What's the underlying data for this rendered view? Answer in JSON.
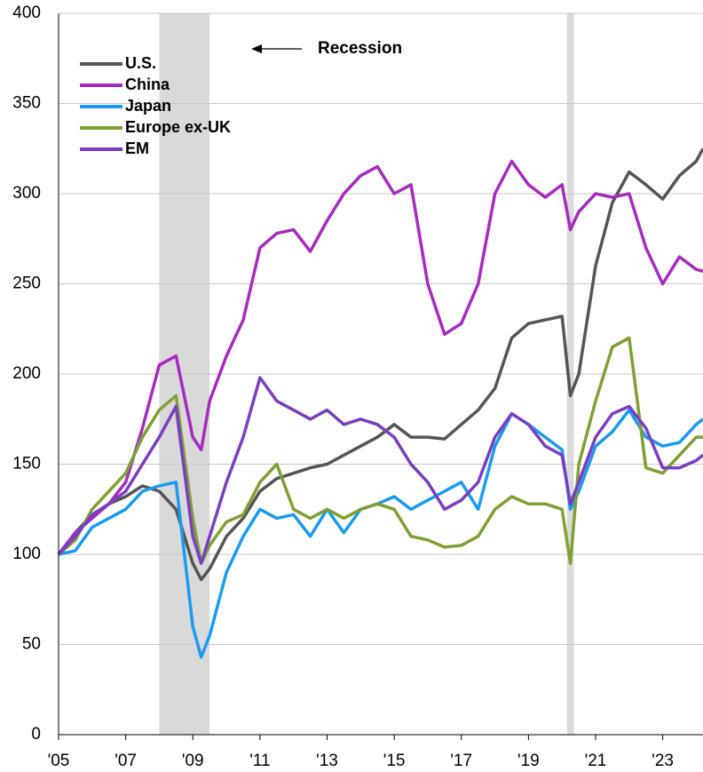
{
  "chart_data": {
    "type": "line",
    "annotation": "Recession",
    "recessions": [
      [
        2008,
        2009.5
      ],
      [
        2020.15,
        2020.35
      ]
    ],
    "x": [
      2005,
      2005.5,
      2006,
      2006.5,
      2007,
      2007.5,
      2008,
      2008.5,
      2009,
      2009.25,
      2009.5,
      2010,
      2010.5,
      2011,
      2011.5,
      2012,
      2012.5,
      2013,
      2013.5,
      2014,
      2014.5,
      2015,
      2015.5,
      2016,
      2016.5,
      2017,
      2017.5,
      2018,
      2018.5,
      2019,
      2019.5,
      2020,
      2020.25,
      2020.5,
      2021,
      2021.5,
      2022,
      2022.5,
      2023,
      2023.5,
      2024,
      2024.2
    ],
    "series": [
      {
        "name": "U.S.",
        "color": "#555555",
        "values": [
          100,
          112,
          122,
          128,
          132,
          138,
          135,
          125,
          95,
          86,
          92,
          110,
          120,
          135,
          142,
          145,
          148,
          150,
          155,
          160,
          165,
          172,
          165,
          165,
          164,
          172,
          180,
          192,
          220,
          228,
          230,
          232,
          188,
          200,
          260,
          295,
          312,
          305,
          297,
          310,
          318,
          325
        ]
      },
      {
        "name": "China",
        "color": "#a62bbf",
        "values": [
          100,
          112,
          120,
          128,
          140,
          170,
          205,
          210,
          165,
          158,
          185,
          210,
          230,
          270,
          278,
          280,
          268,
          285,
          300,
          310,
          315,
          300,
          305,
          250,
          222,
          228,
          250,
          300,
          318,
          305,
          298,
          305,
          280,
          290,
          300,
          298,
          300,
          270,
          250,
          265,
          258,
          257
        ]
      },
      {
        "name": "Japan",
        "color": "#1a9bf0",
        "values": [
          100,
          102,
          115,
          120,
          125,
          135,
          138,
          140,
          60,
          43,
          55,
          90,
          110,
          125,
          120,
          122,
          110,
          125,
          112,
          125,
          128,
          132,
          125,
          130,
          135,
          140,
          125,
          160,
          178,
          172,
          165,
          158,
          125,
          135,
          160,
          168,
          180,
          165,
          160,
          162,
          172,
          175
        ]
      },
      {
        "name": "Europe ex-UK",
        "color": "#7fa032",
        "values": [
          100,
          108,
          125,
          135,
          145,
          165,
          180,
          188,
          120,
          95,
          105,
          118,
          122,
          140,
          150,
          125,
          120,
          125,
          120,
          125,
          128,
          125,
          110,
          108,
          104,
          105,
          110,
          125,
          132,
          128,
          128,
          125,
          95,
          150,
          185,
          215,
          220,
          148,
          145,
          155,
          165,
          165
        ]
      },
      {
        "name": "EM",
        "color": "#7a3fc0",
        "values": [
          100,
          110,
          122,
          128,
          135,
          150,
          165,
          182,
          110,
          95,
          110,
          140,
          165,
          198,
          185,
          180,
          175,
          180,
          172,
          175,
          172,
          165,
          150,
          140,
          125,
          130,
          140,
          165,
          178,
          172,
          160,
          155,
          128,
          140,
          165,
          178,
          182,
          170,
          148,
          148,
          152,
          155
        ]
      }
    ],
    "xlim": [
      2005,
      2024.2
    ],
    "xticks": [
      {
        "value": 2005,
        "label": "'05"
      },
      {
        "value": 2007,
        "label": "'07"
      },
      {
        "value": 2009,
        "label": "'09"
      },
      {
        "value": 2011,
        "label": "'11"
      },
      {
        "value": 2013,
        "label": "'13"
      },
      {
        "value": 2015,
        "label": "'15"
      },
      {
        "value": 2017,
        "label": "'17"
      },
      {
        "value": 2019,
        "label": "'19"
      },
      {
        "value": 2021,
        "label": "'21"
      },
      {
        "value": 2023,
        "label": "'23"
      }
    ],
    "ylim": [
      0,
      400
    ],
    "yticks": [
      0,
      50,
      100,
      150,
      200,
      250,
      300,
      350,
      400
    ],
    "grid": true,
    "legend": "upper left"
  }
}
